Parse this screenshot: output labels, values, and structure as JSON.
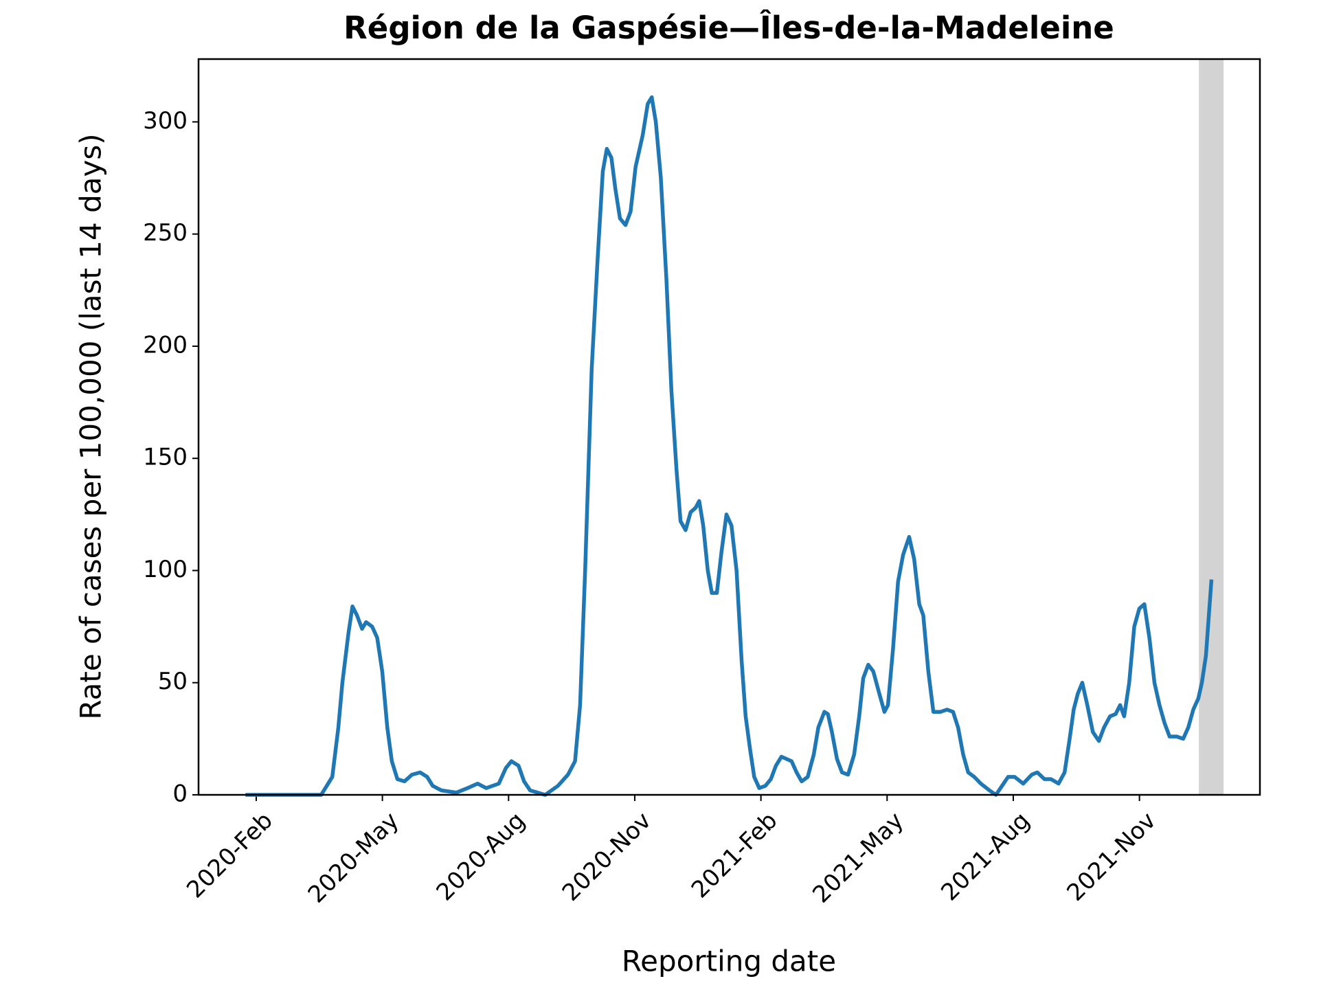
{
  "chart_data": {
    "type": "line",
    "title": "Région de la Gaspésie—Îles-de-la-Madeleine",
    "xlabel": "Reporting date",
    "ylabel": "Rate of cases per 100,000 (last 14 days)",
    "xlim": [
      2019.969,
      2022.072
    ],
    "ylim": [
      0,
      328
    ],
    "xticks": [
      {
        "value": 2020.0833,
        "label": "2020-Feb"
      },
      {
        "value": 2020.3333,
        "label": "2020-May"
      },
      {
        "value": 2020.5833,
        "label": "2020-Aug"
      },
      {
        "value": 2020.8333,
        "label": "2020-Nov"
      },
      {
        "value": 2021.0833,
        "label": "2021-Feb"
      },
      {
        "value": 2021.3333,
        "label": "2021-May"
      },
      {
        "value": 2021.5833,
        "label": "2021-Aug"
      },
      {
        "value": 2021.8333,
        "label": "2021-Nov"
      }
    ],
    "yticks": [
      0,
      50,
      100,
      150,
      200,
      250,
      300
    ],
    "shaded_span": {
      "x": [
        2021.951,
        2022.0
      ],
      "color": "#d3d3d3"
    },
    "series": [
      {
        "color": "#1f77b4",
        "x": [
          2020.062,
          2020.212,
          2020.234,
          2020.246,
          2020.254,
          2020.266,
          2020.274,
          2020.283,
          2020.293,
          2020.301,
          2020.313,
          2020.323,
          2020.333,
          2020.343,
          2020.352,
          2020.363,
          2020.377,
          2020.392,
          2020.408,
          2020.422,
          2020.433,
          2020.45,
          2020.48,
          2020.502,
          2020.522,
          2020.539,
          2020.564,
          2020.578,
          2020.589,
          2020.603,
          2020.614,
          2020.626,
          2020.656,
          2020.681,
          2020.701,
          2020.715,
          2020.725,
          2020.735,
          2020.748,
          2020.76,
          2020.77,
          2020.778,
          2020.787,
          2020.795,
          2020.804,
          2020.815,
          2020.825,
          2020.835,
          2020.849,
          2020.859,
          2020.867,
          2020.875,
          2020.885,
          2020.896,
          2020.906,
          2020.916,
          2020.924,
          2020.934,
          2020.944,
          2020.954,
          2020.961,
          2020.969,
          2020.978,
          2020.986,
          2020.996,
          2021.005,
          2021.015,
          2021.025,
          2021.035,
          2021.045,
          2021.053,
          2021.062,
          2021.07,
          2021.08,
          2021.092,
          2021.103,
          2021.113,
          2021.124,
          2021.134,
          2021.144,
          2021.154,
          2021.164,
          2021.176,
          2021.188,
          2021.197,
          2021.209,
          2021.216,
          2021.224,
          2021.234,
          2021.244,
          2021.256,
          2021.268,
          2021.278,
          2021.286,
          2021.296,
          2021.306,
          2021.318,
          2021.328,
          2021.335,
          2021.345,
          2021.355,
          2021.365,
          2021.377,
          2021.387,
          2021.397,
          2021.405,
          2021.415,
          2021.425,
          2021.439,
          2021.452,
          2021.464,
          2021.474,
          2021.484,
          2021.494,
          2021.506,
          2021.519,
          2021.536,
          2021.549,
          2021.561,
          2021.573,
          2021.586,
          2021.603,
          2021.62,
          2021.631,
          2021.645,
          2021.658,
          2021.673,
          2021.685,
          2021.695,
          2021.703,
          2021.711,
          2021.72,
          2021.73,
          2021.741,
          2021.753,
          2021.763,
          2021.775,
          2021.786,
          2021.795,
          2021.803,
          2021.813,
          2021.823,
          2021.833,
          2021.843,
          2021.853,
          2021.863,
          2021.873,
          2021.883,
          2021.893,
          2021.907,
          2021.92,
          2021.93,
          2021.94,
          2021.95,
          2021.957,
          2021.965,
          2021.976
        ],
        "values": [
          0,
          0,
          8,
          30,
          50,
          72,
          84,
          80,
          74,
          77,
          75,
          70,
          55,
          30,
          15,
          7,
          6,
          9,
          10,
          8,
          4,
          2,
          1,
          3,
          5,
          3,
          5,
          12,
          15,
          13,
          6,
          2,
          0,
          4,
          9,
          15,
          40,
          100,
          190,
          240,
          278,
          288,
          284,
          270,
          257,
          254,
          260,
          280,
          294,
          308,
          311,
          300,
          275,
          230,
          180,
          145,
          122,
          118,
          126,
          128,
          131,
          120,
          100,
          90,
          90,
          108,
          125,
          120,
          100,
          60,
          35,
          20,
          8,
          3,
          4,
          7,
          13,
          17,
          16,
          15,
          10,
          6,
          8,
          18,
          30,
          37,
          36,
          28,
          16,
          10,
          9,
          18,
          35,
          52,
          58,
          55,
          45,
          37,
          40,
          65,
          95,
          107,
          115,
          105,
          85,
          80,
          55,
          37,
          37,
          38,
          37,
          30,
          18,
          10,
          8,
          5,
          2,
          0,
          4,
          8,
          8,
          5,
          9,
          10,
          7,
          7,
          5,
          10,
          25,
          38,
          45,
          50,
          40,
          28,
          24,
          30,
          35,
          36,
          40,
          35,
          50,
          75,
          83,
          85,
          70,
          50,
          40,
          32,
          26,
          26,
          25,
          30,
          38,
          43,
          50,
          62,
          96
        ]
      }
    ]
  }
}
